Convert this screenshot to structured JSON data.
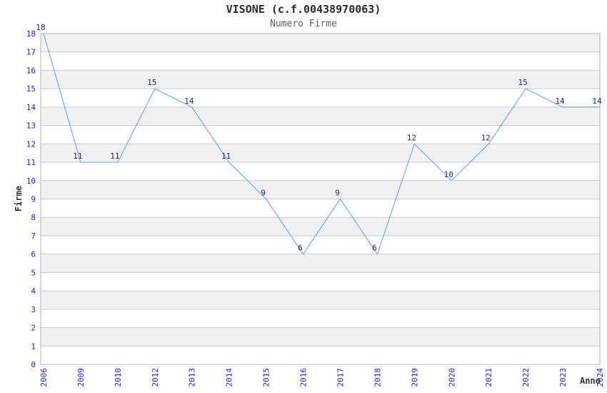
{
  "chart_data": {
    "type": "line",
    "title": "VISONE (c.f.00438970063)",
    "subtitle": "Numero Firme",
    "xlabel": "Anno",
    "ylabel": "Firme",
    "categories": [
      "2006",
      "2009",
      "2010",
      "2012",
      "2013",
      "2014",
      "2015",
      "2016",
      "2017",
      "2018",
      "2019",
      "2020",
      "2021",
      "2022",
      "2023",
      "2024"
    ],
    "values": [
      18,
      11,
      11,
      15,
      14,
      11,
      9,
      6,
      9,
      6,
      12,
      10,
      12,
      15,
      14,
      14
    ],
    "ylim": [
      0,
      18
    ],
    "y_tick_step": 1,
    "grid": true,
    "banded_background": true,
    "legend": "none",
    "colors": {
      "line": "#78abdf",
      "value_labels": "#26267e",
      "tick_labels": "#2323cc",
      "title": "#2b2b2b",
      "subtitle": "#5f5f5f",
      "axis_titles": "#333333",
      "band": "#f1f1f1",
      "gridline": "#cccccc",
      "plot_border": "#b3b3b3",
      "background": "#ffffff"
    }
  }
}
